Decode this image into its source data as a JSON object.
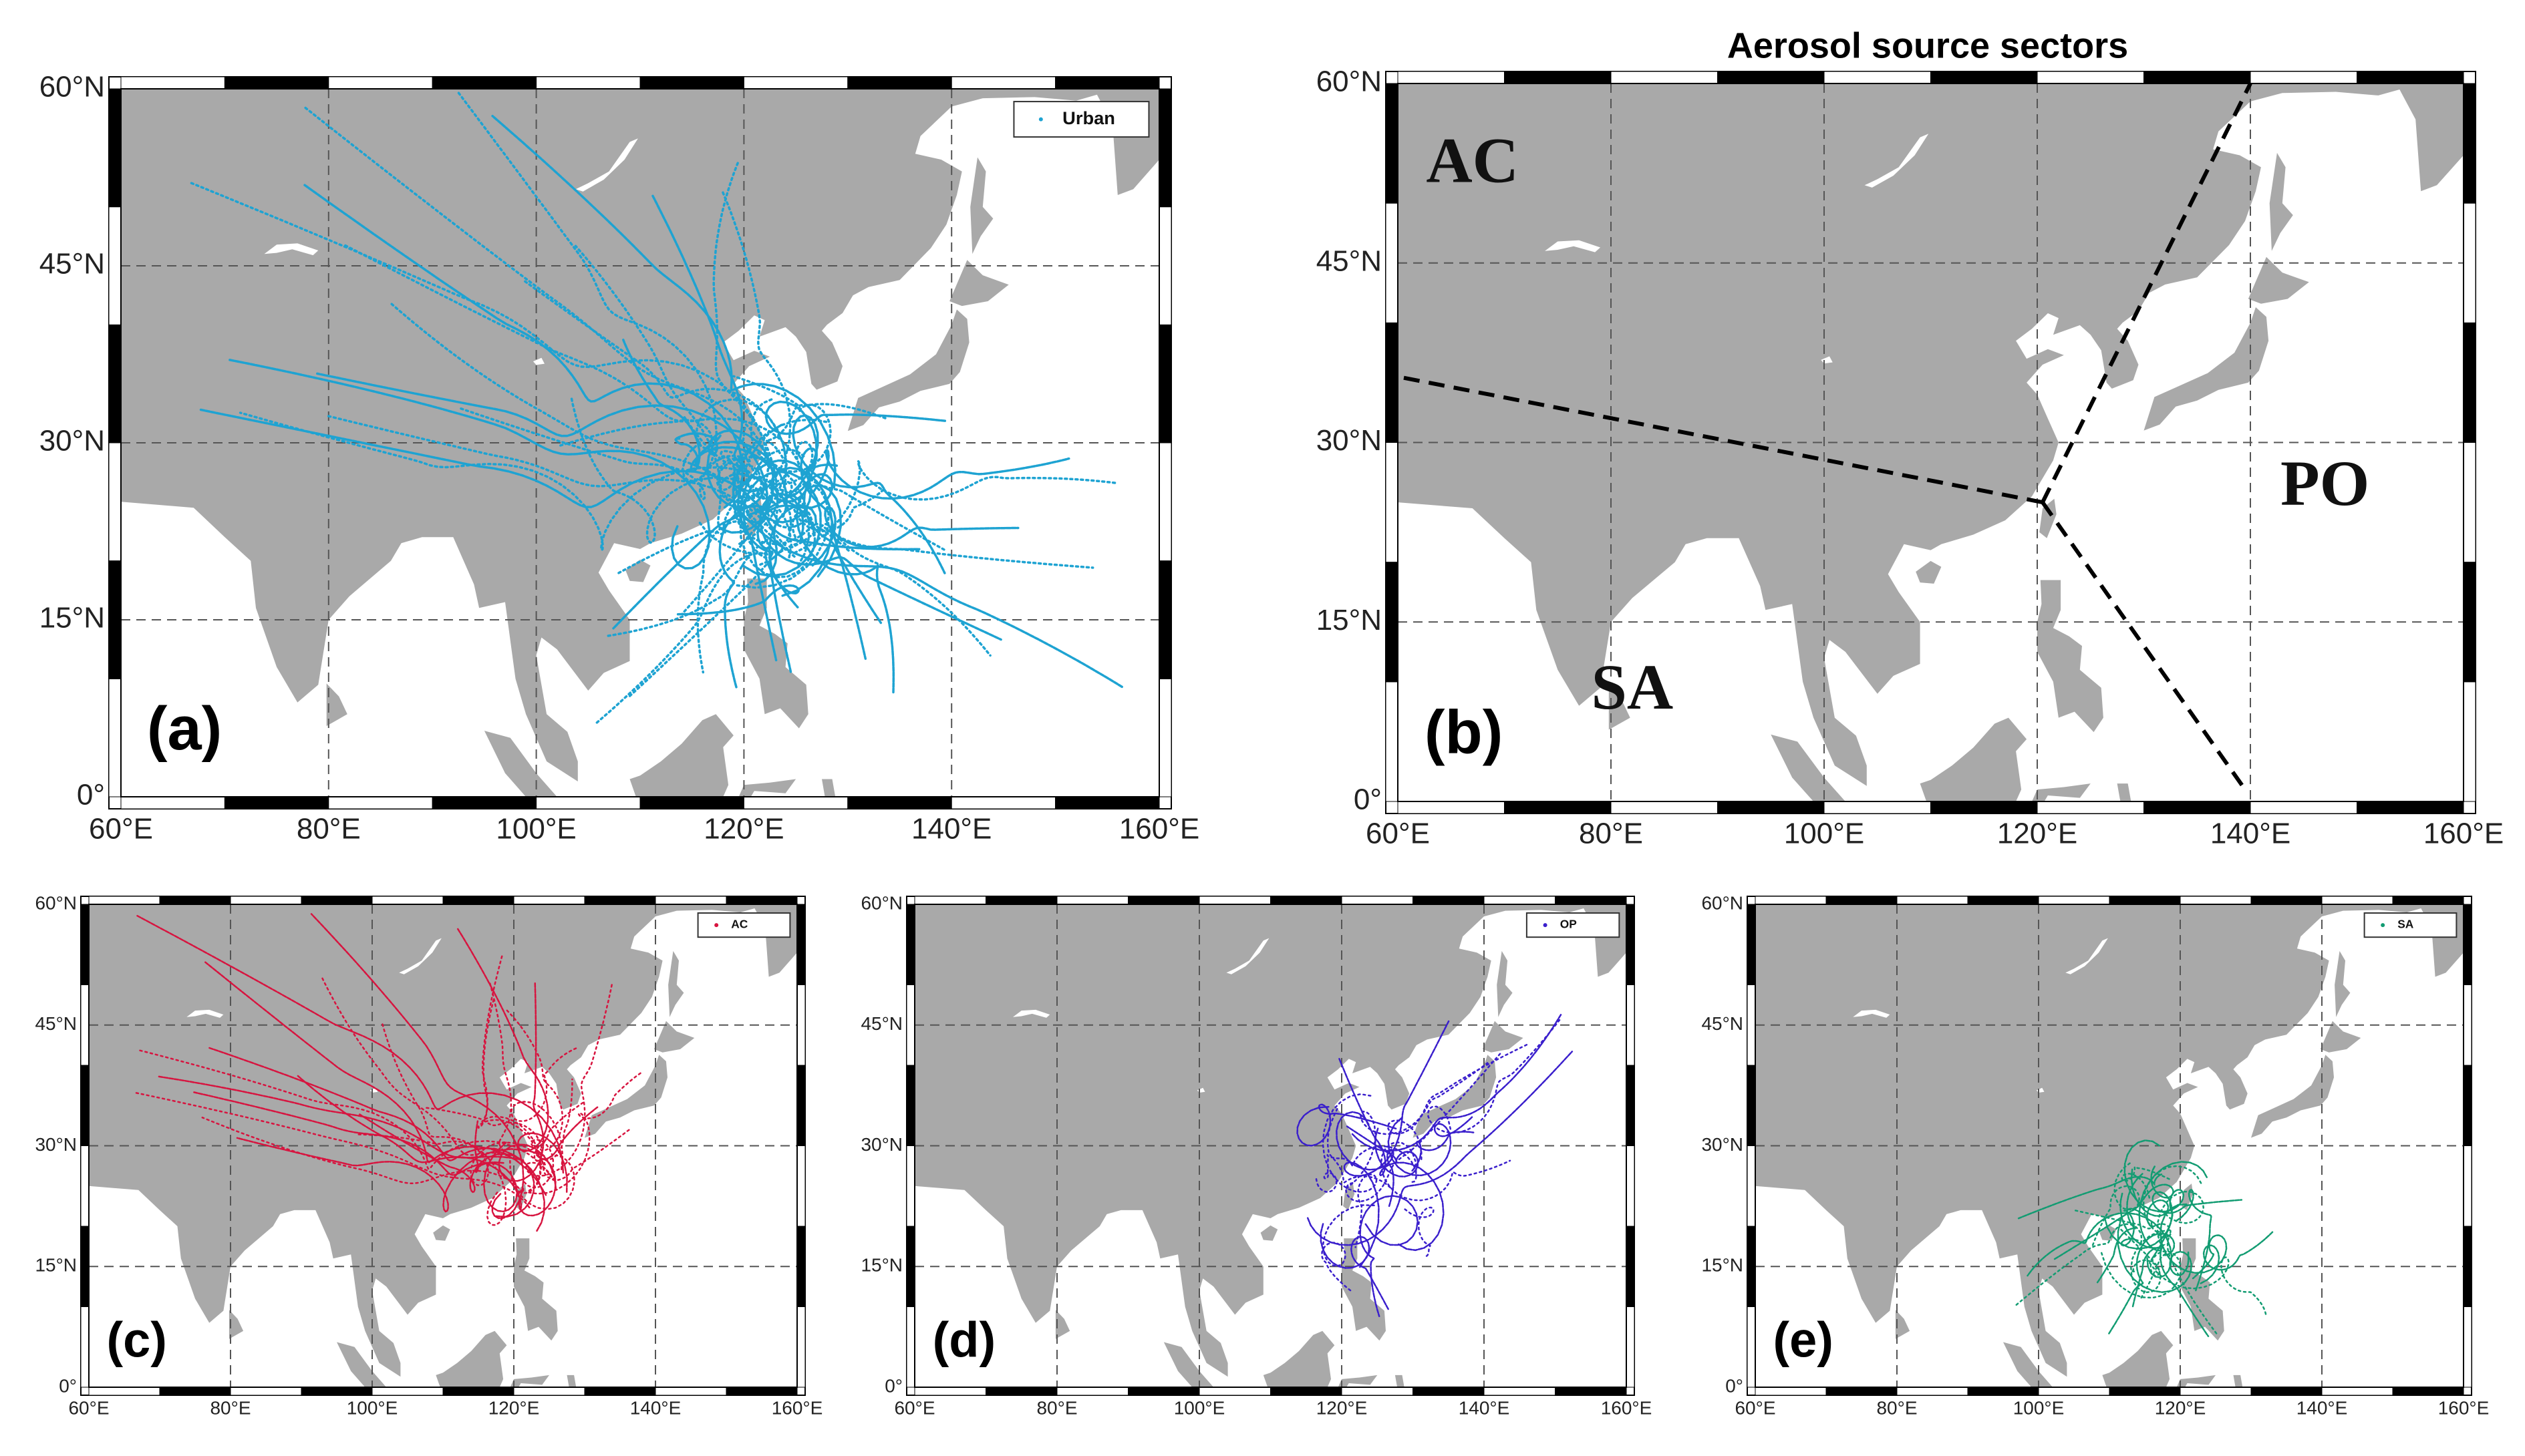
{
  "title": "Aerosol source sectors",
  "panels": [
    {
      "label": "(a)",
      "legend": "Urban",
      "xticks": [
        "60°E",
        "80°E",
        "100°E",
        "120°E",
        "140°E",
        "160°E"
      ],
      "yticks": [
        "0°",
        "15°N",
        "30°N",
        "45°N",
        "60°N"
      ]
    },
    {
      "label": "(b)",
      "sectors": [
        "AC",
        "PO",
        "SA"
      ],
      "xticks": [
        "60°E",
        "80°E",
        "100°E",
        "120°E",
        "140°E",
        "160°E"
      ],
      "yticks": [
        "0°",
        "15°N",
        "30°N",
        "45°N",
        "60°N"
      ]
    },
    {
      "label": "(c)",
      "legend": "AC",
      "xticks": [
        "60°E",
        "80°E",
        "100°E",
        "120°E",
        "140°E",
        "160°E"
      ],
      "yticks": [
        "0°",
        "15°N",
        "30°N",
        "45°N",
        "60°N"
      ]
    },
    {
      "label": "(d)",
      "legend": "OP",
      "xticks": [
        "60°E",
        "80°E",
        "100°E",
        "120°E",
        "140°E",
        "160°E"
      ],
      "yticks": [
        "0°",
        "15°N",
        "30°N",
        "45°N",
        "60°N"
      ]
    },
    {
      "label": "(e)",
      "legend": "SA",
      "xticks": [
        "60°E",
        "80°E",
        "100°E",
        "120°E",
        "140°E",
        "160°E"
      ],
      "yticks": [
        "0°",
        "15°N",
        "30°N",
        "45°N",
        "60°N"
      ]
    }
  ]
}
